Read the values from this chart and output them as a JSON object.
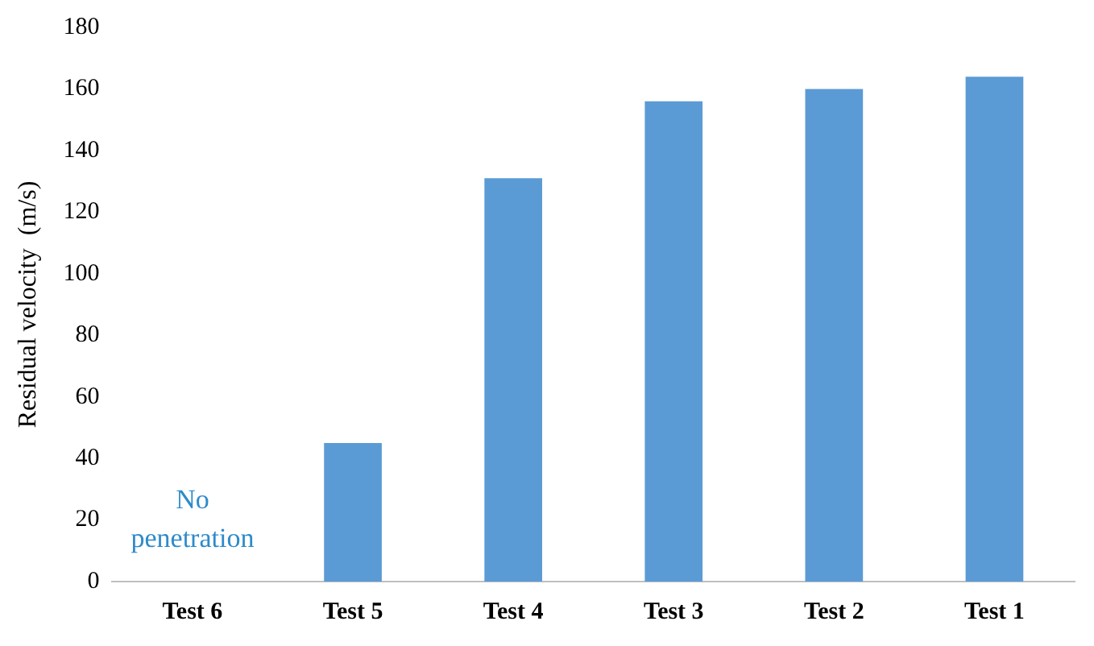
{
  "chart_data": {
    "type": "bar",
    "ylabel": "Residual velocity  (m/s)",
    "categories": [
      "Test 6",
      "Test 5",
      "Test 4",
      "Test 3",
      "Test 2",
      "Test 1"
    ],
    "values": [
      0,
      45,
      131,
      156,
      160,
      164
    ],
    "color": "#5b9bd5",
    "ylim": [
      0,
      180
    ],
    "yticks": [
      0,
      20,
      40,
      60,
      80,
      100,
      120,
      140,
      160,
      180
    ],
    "grid": false,
    "legend": false,
    "annotations": [
      "No\npenetration"
    ]
  }
}
